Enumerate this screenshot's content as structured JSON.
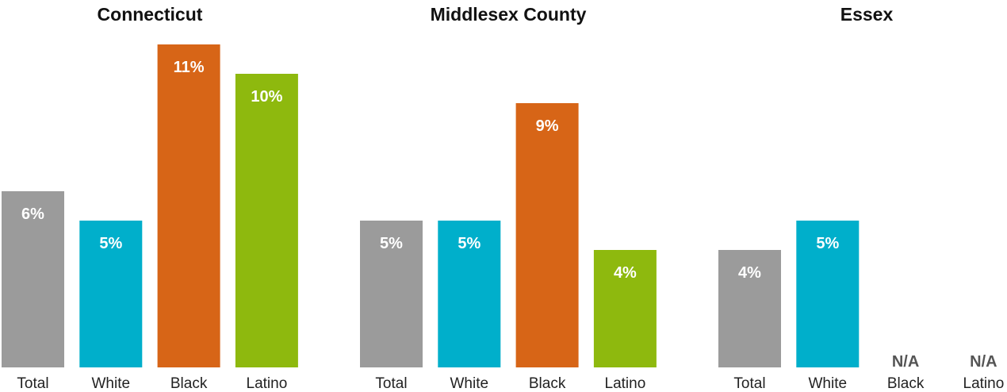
{
  "chart_data": [
    {
      "type": "bar",
      "title": "Connecticut",
      "categories": [
        "Total",
        "White",
        "Black",
        "Latino"
      ],
      "values": [
        6,
        5,
        11,
        10
      ],
      "labels": [
        "6%",
        "5%",
        "11%",
        "10%"
      ],
      "ylim": [
        0,
        12
      ]
    },
    {
      "type": "bar",
      "title": "Middlesex County",
      "categories": [
        "Total",
        "White",
        "Black",
        "Latino"
      ],
      "values": [
        5,
        5,
        9,
        4
      ],
      "labels": [
        "5%",
        "5%",
        "9%",
        "4%"
      ],
      "ylim": [
        0,
        12
      ]
    },
    {
      "type": "bar",
      "title": "Essex",
      "categories": [
        "Total",
        "White",
        "Black",
        "Latino"
      ],
      "values": [
        4,
        5,
        null,
        null
      ],
      "labels": [
        "4%",
        "5%",
        "N/A",
        "N/A"
      ],
      "ylim": [
        0,
        12
      ]
    }
  ],
  "colors": {
    "Total": "#9b9b9b",
    "White": "#00afcb",
    "Black": "#d76517",
    "Latino": "#8eb90e"
  },
  "grid": false,
  "legend": "none"
}
